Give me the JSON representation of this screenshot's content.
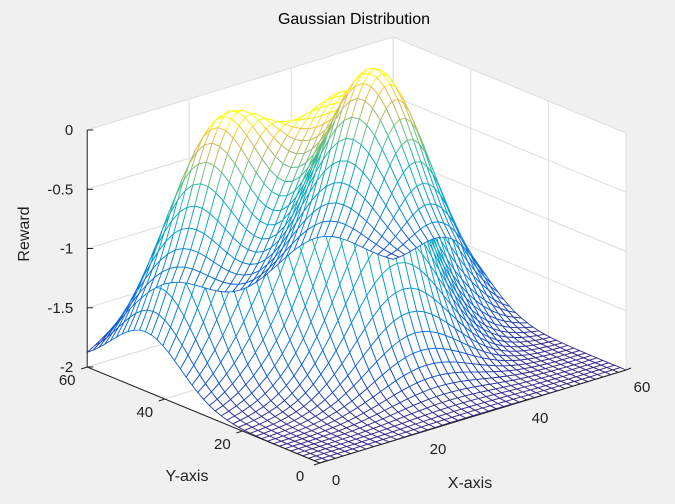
{
  "chart_data": {
    "type": "surface-mesh",
    "title": "Gaussian Distribution",
    "xlabel": "X-axis",
    "ylabel": "Y-axis",
    "zlabel": "Reward",
    "xlim": [
      0,
      60
    ],
    "ylim": [
      0,
      60
    ],
    "zlim": [
      -2,
      0
    ],
    "xticks": [
      0,
      20,
      40,
      60
    ],
    "yticks": [
      0,
      20,
      40,
      60
    ],
    "zticks": [
      -2,
      -1.5,
      -1,
      -0.5,
      0
    ],
    "xtick_labels": [
      "0",
      "20",
      "40",
      "60"
    ],
    "ytick_labels": [
      "0",
      "20",
      "40",
      "60"
    ],
    "ztick_labels": [
      "-2",
      "-1.5",
      "-1",
      "-0.5",
      "0"
    ],
    "grid": true,
    "colormap": "parula",
    "mesh_samples": 40,
    "surface": {
      "baseline": -2,
      "peaks": [
        {
          "x": 15,
          "y": 45,
          "amplitude": 2,
          "sigma": 9
        },
        {
          "x": 30,
          "y": 30,
          "amplitude": 2,
          "sigma": 9
        },
        {
          "x": 45,
          "y": 45,
          "amplitude": 2,
          "sigma": 9
        }
      ]
    }
  },
  "colors": {
    "figure_bg": "#f0f0f0",
    "axes_bg": "#ffffff",
    "grid": "#dddddd",
    "axis": "#222222"
  }
}
